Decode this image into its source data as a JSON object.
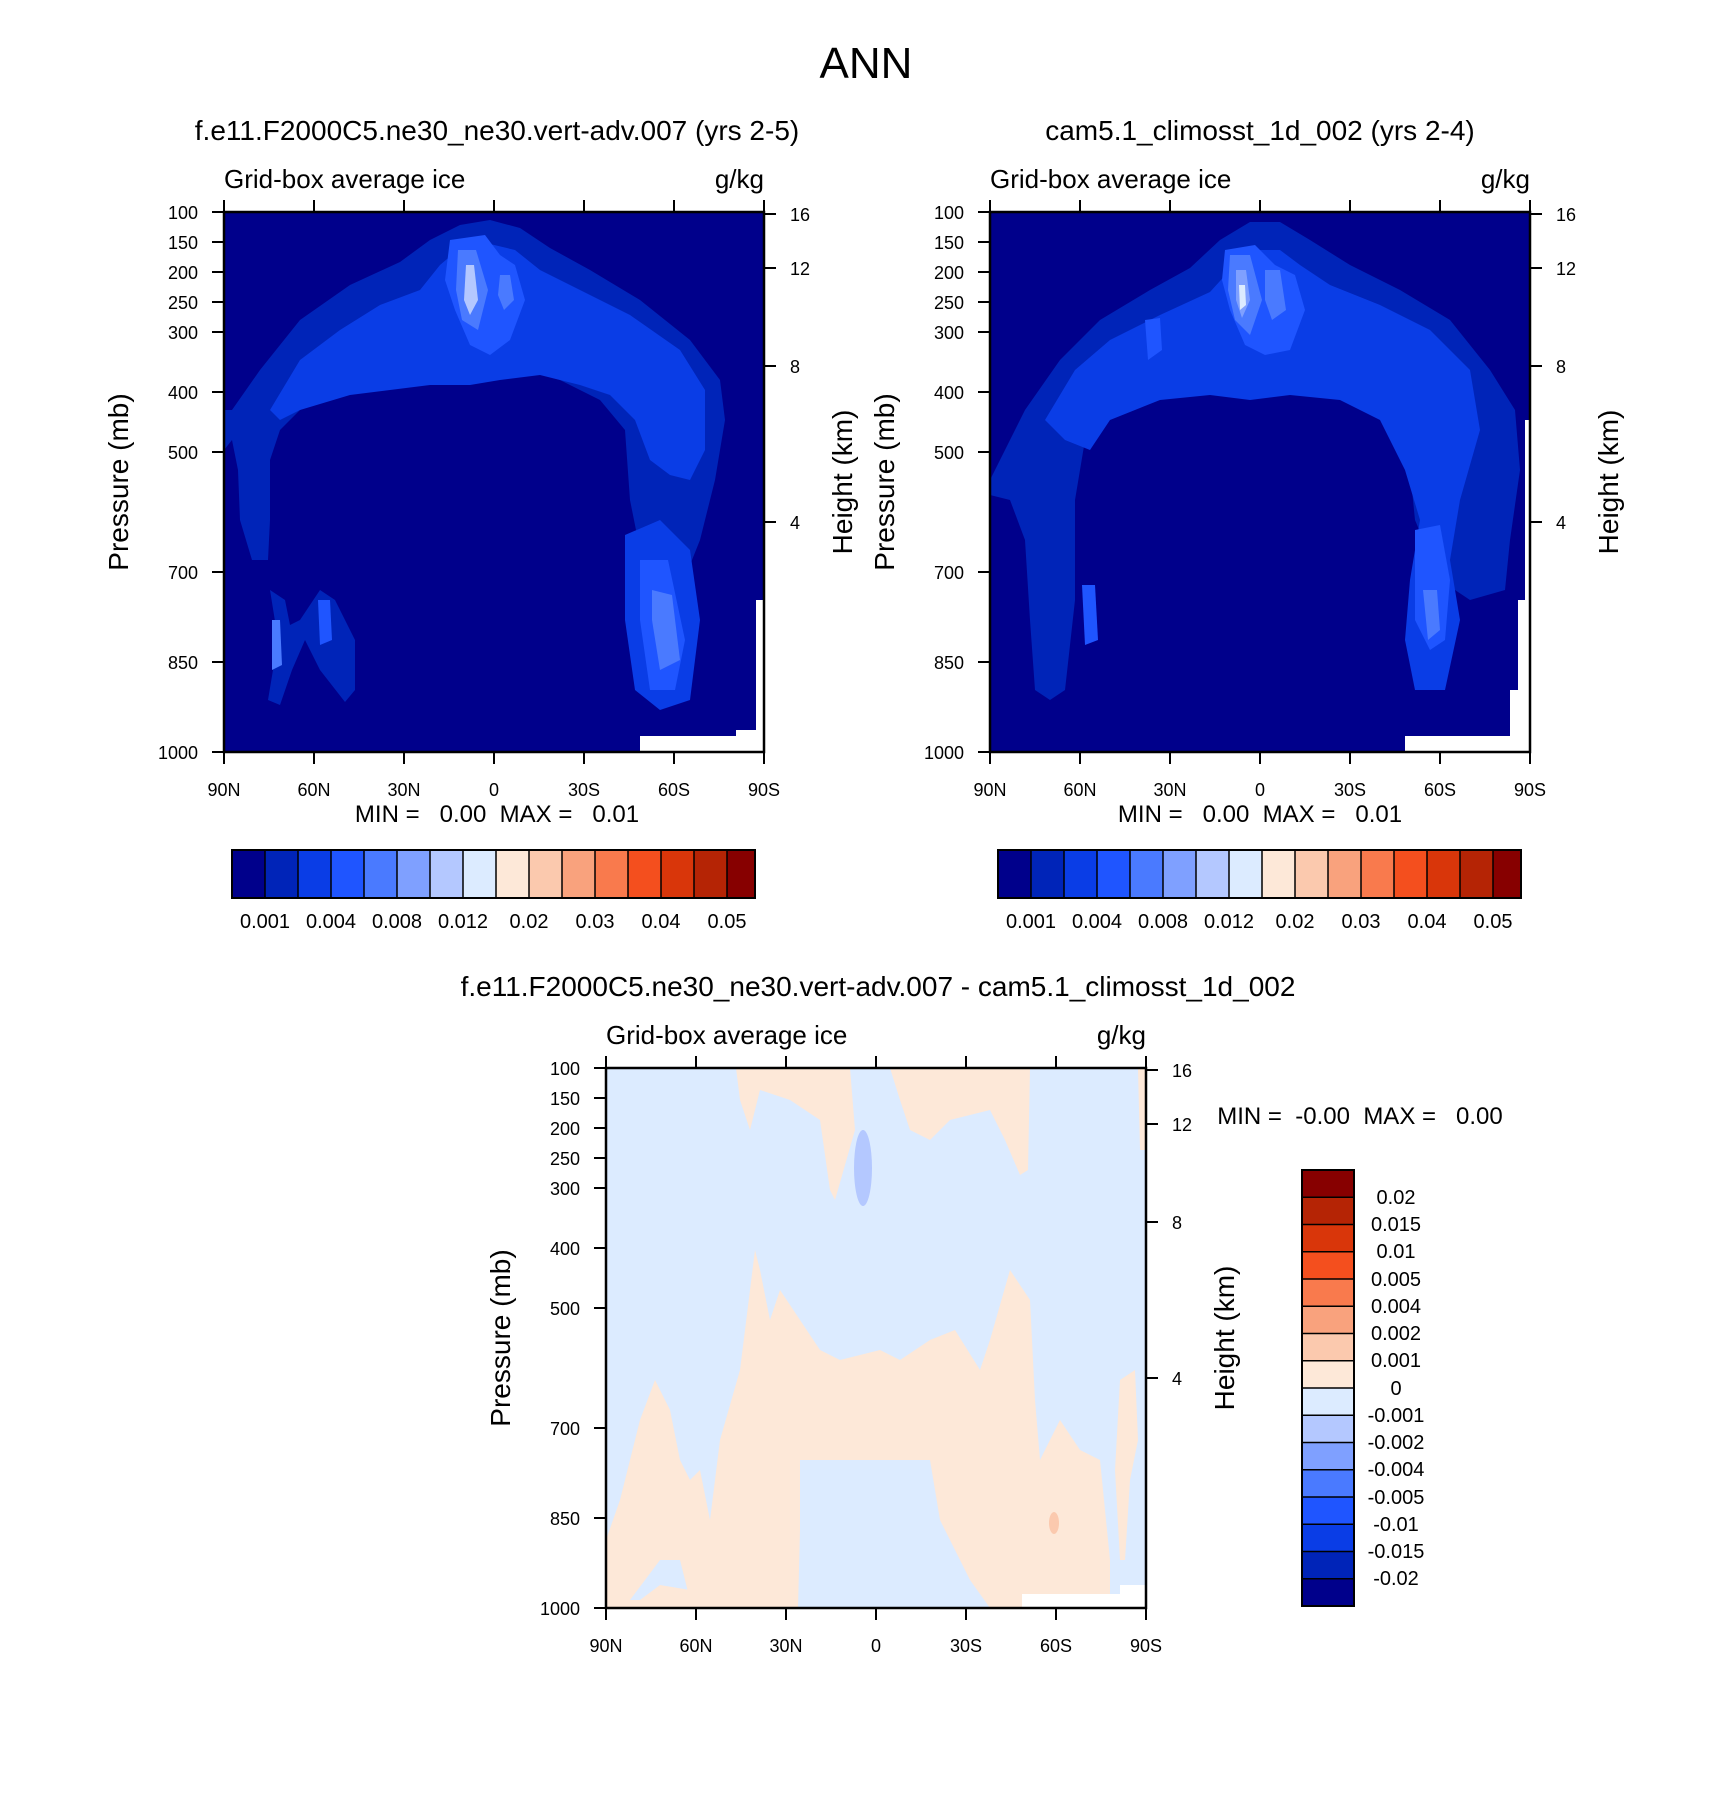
{
  "page_title": "ANN",
  "chart_data": [
    {
      "type": "heatmap",
      "title": "f.e11.F2000C5.ne30_ne30.vert-adv.007 (yrs 2-5)",
      "subtitle_left": "Grid-box average ice",
      "subtitle_right": "g/kg",
      "ylabel": "Pressure (mb)",
      "ylabel_right": "Height (km)",
      "x_ticks": [
        "90N",
        "60N",
        "30N",
        "0",
        "30S",
        "60S",
        "90S"
      ],
      "y_ticks": [
        "100",
        "150",
        "200",
        "250",
        "300",
        "400",
        "500",
        "700",
        "850",
        "1000"
      ],
      "y_right_ticks": [
        "16",
        "12",
        "8",
        "4"
      ],
      "min_max_text": "MIN =   0.00  MAX =   0.01",
      "colorbar": {
        "orientation": "horizontal",
        "labels": [
          "0.001",
          "0.004",
          "0.008",
          "0.012",
          "0.02",
          "0.03",
          "0.04",
          "0.05"
        ],
        "colors": [
          "#00008b",
          "#0024b8",
          "#0a3de6",
          "#1f55ff",
          "#4a7aff",
          "#7fa0ff",
          "#b4c8ff",
          "#dcebff",
          "#fde8d8",
          "#fbc9ae",
          "#f9a27d",
          "#f97a4d",
          "#f44f1e",
          "#d9360a",
          "#b52405",
          "#870000"
        ]
      }
    },
    {
      "type": "heatmap",
      "title": "cam5.1_climosst_1d_002 (yrs 2-4)",
      "subtitle_left": "Grid-box average ice",
      "subtitle_right": "g/kg",
      "ylabel": "Pressure (mb)",
      "ylabel_right": "Height (km)",
      "x_ticks": [
        "90N",
        "60N",
        "30N",
        "0",
        "30S",
        "60S",
        "90S"
      ],
      "y_ticks": [
        "100",
        "150",
        "200",
        "250",
        "300",
        "400",
        "500",
        "700",
        "850",
        "1000"
      ],
      "y_right_ticks": [
        "16",
        "12",
        "8",
        "4"
      ],
      "min_max_text": "MIN =   0.00  MAX =   0.01",
      "colorbar": {
        "orientation": "horizontal",
        "labels": [
          "0.001",
          "0.004",
          "0.008",
          "0.012",
          "0.02",
          "0.03",
          "0.04",
          "0.05"
        ],
        "colors": [
          "#00008b",
          "#0024b8",
          "#0a3de6",
          "#1f55ff",
          "#4a7aff",
          "#7fa0ff",
          "#b4c8ff",
          "#dcebff",
          "#fde8d8",
          "#fbc9ae",
          "#f9a27d",
          "#f97a4d",
          "#f44f1e",
          "#d9360a",
          "#b52405",
          "#870000"
        ]
      }
    },
    {
      "type": "heatmap",
      "title": "f.e11.F2000C5.ne30_ne30.vert-adv.007 - cam5.1_climosst_1d_002",
      "subtitle_left": "Grid-box average ice",
      "subtitle_right": "g/kg",
      "ylabel": "Pressure (mb)",
      "ylabel_right": "Height (km)",
      "x_ticks": [
        "90N",
        "60N",
        "30N",
        "0",
        "30S",
        "60S",
        "90S"
      ],
      "y_ticks": [
        "100",
        "150",
        "200",
        "250",
        "300",
        "400",
        "500",
        "700",
        "850",
        "1000"
      ],
      "y_right_ticks": [
        "16",
        "12",
        "8",
        "4"
      ],
      "min_max_text": "MIN =  -0.00  MAX =   0.00",
      "colorbar": {
        "orientation": "vertical",
        "labels": [
          "0.02",
          "0.015",
          "0.01",
          "0.005",
          "0.004",
          "0.002",
          "0.001",
          "0",
          "-0.001",
          "-0.002",
          "-0.004",
          "-0.005",
          "-0.01",
          "-0.015",
          "-0.02"
        ],
        "colors": [
          "#870000",
          "#b52405",
          "#d9360a",
          "#f44f1e",
          "#f97a4d",
          "#f9a27d",
          "#fbc9ae",
          "#fde8d8",
          "#dcebff",
          "#b4c8ff",
          "#7fa0ff",
          "#4a7aff",
          "#1f55ff",
          "#0a3de6",
          "#0024b8",
          "#00008b"
        ]
      }
    }
  ]
}
